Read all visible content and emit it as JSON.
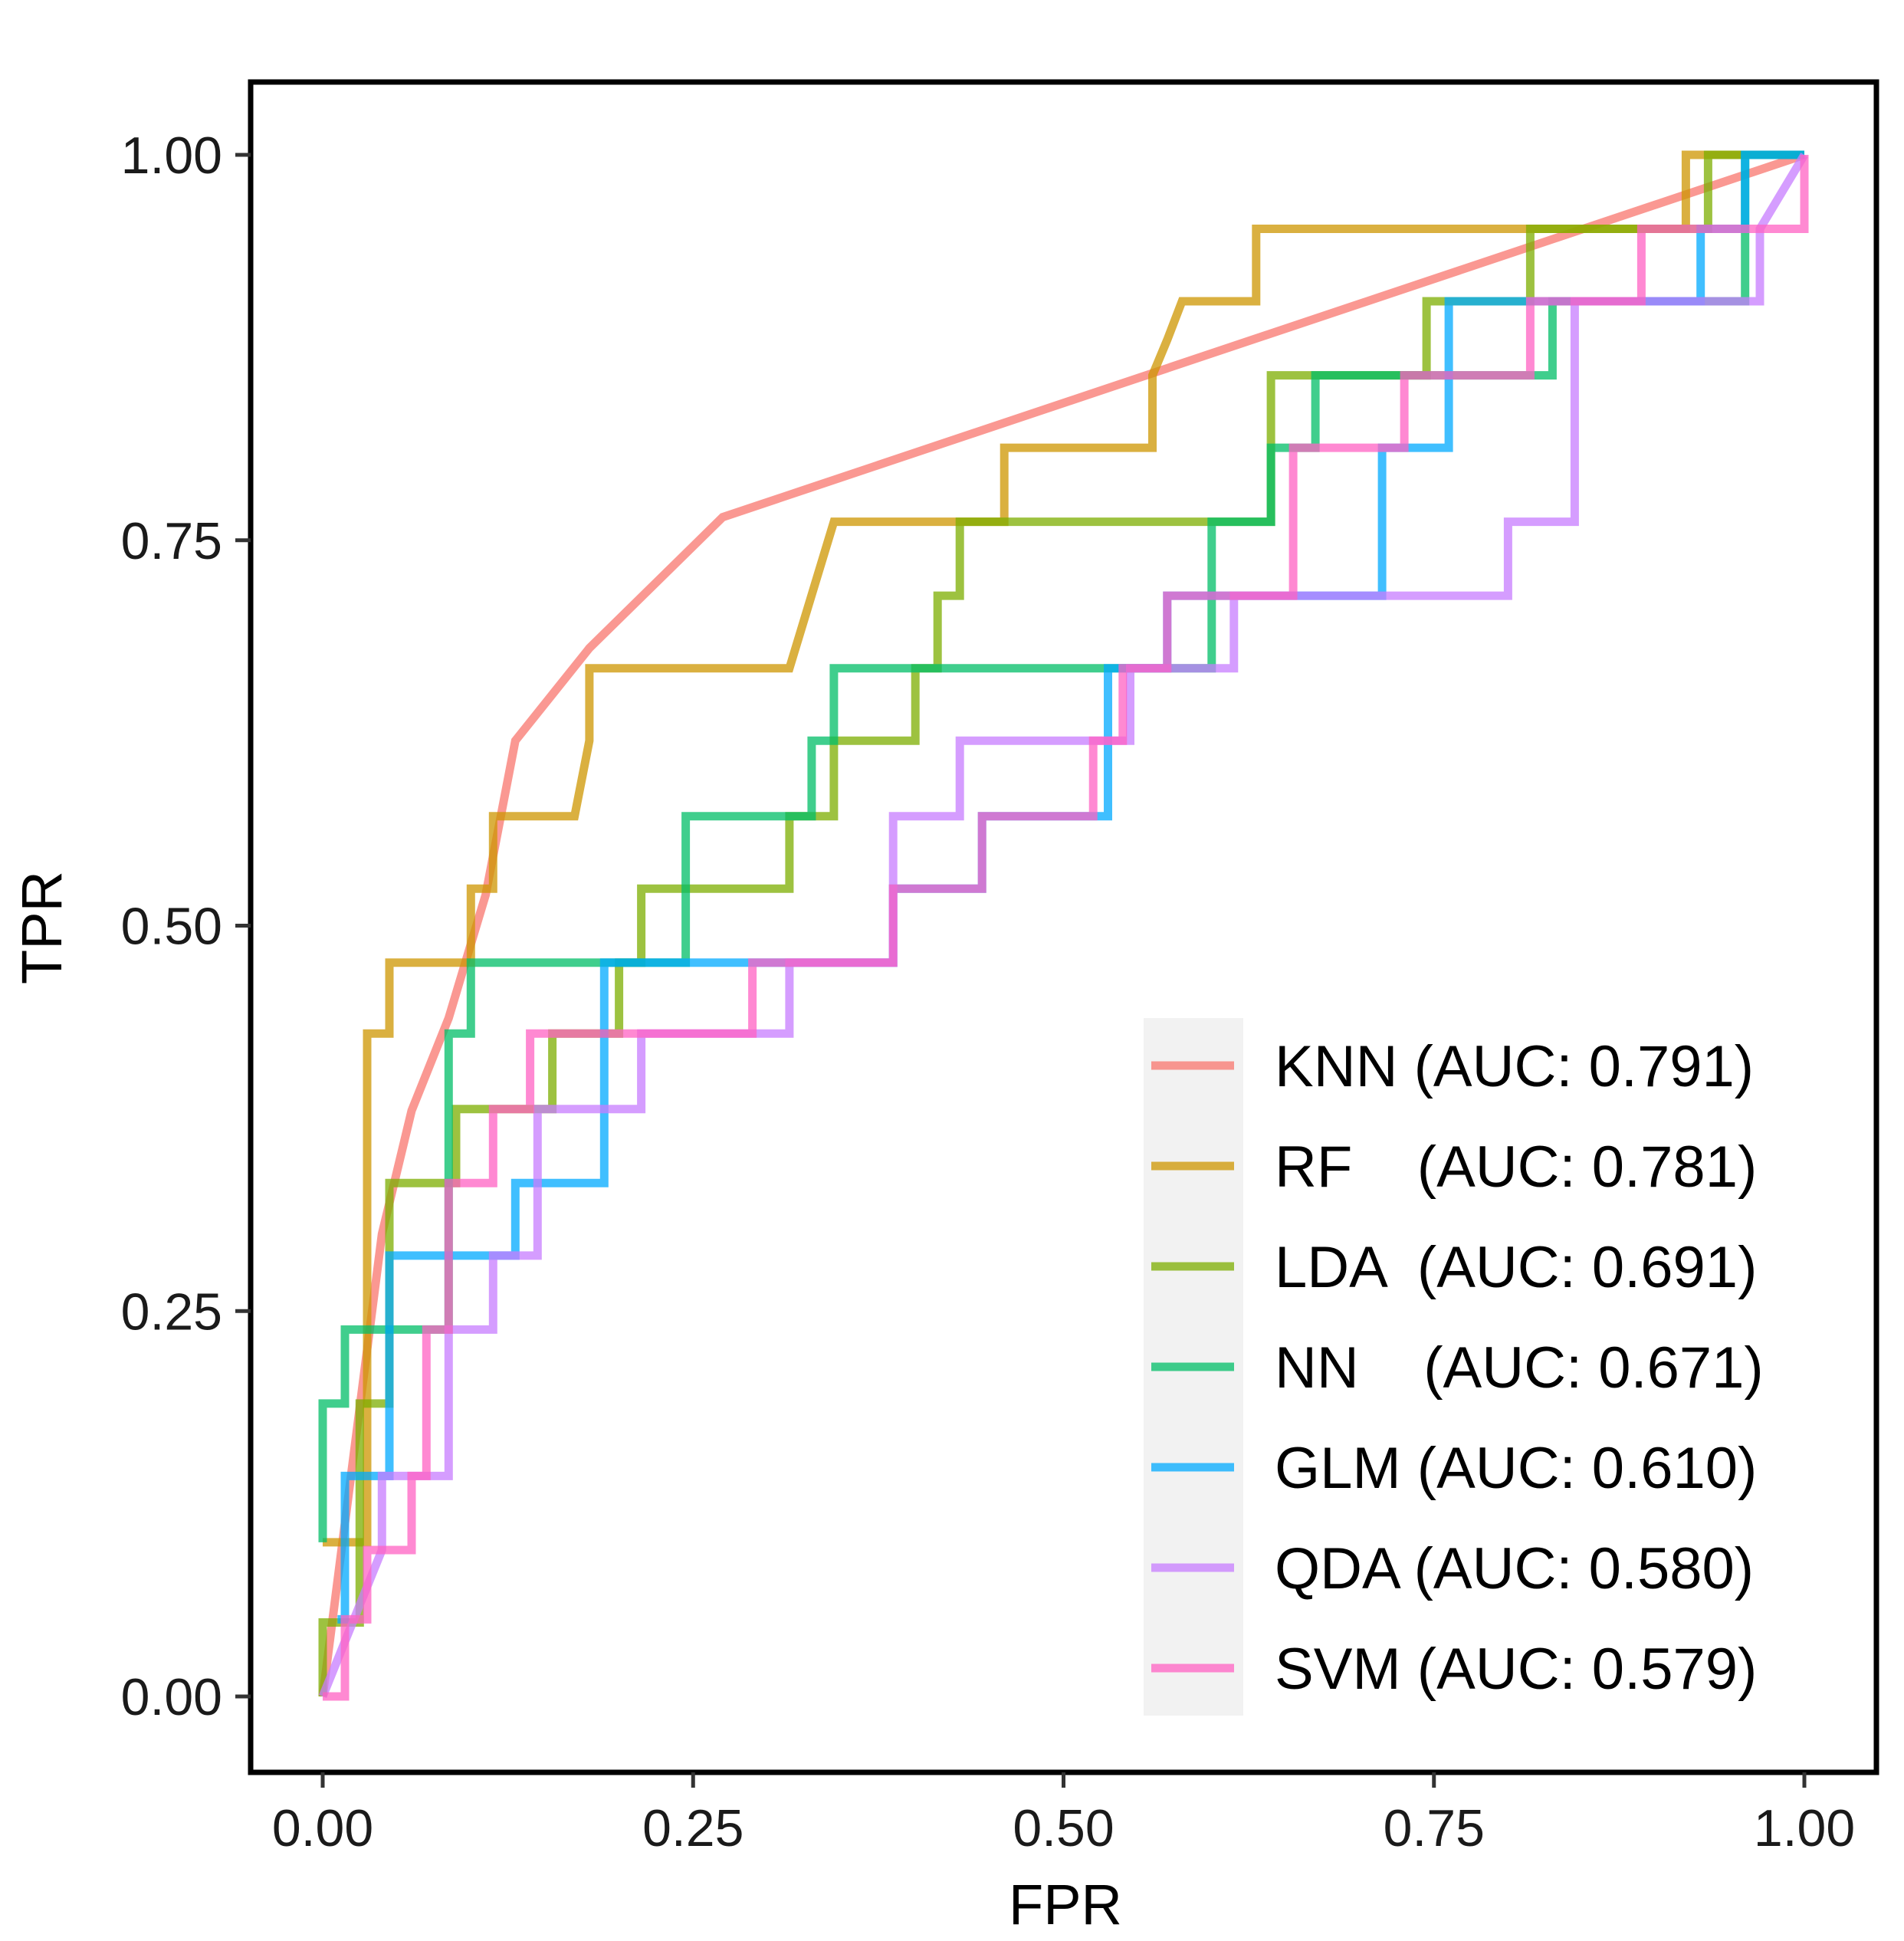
{
  "chart_data": {
    "type": "line",
    "title": "",
    "xlabel": "FPR",
    "ylabel": "TPR",
    "xlim": [
      0,
      1
    ],
    "ylim": [
      0,
      1
    ],
    "x_ticks": [
      0,
      0.25,
      0.5,
      0.75,
      1
    ],
    "y_ticks": [
      0,
      0.25,
      0.5,
      0.75,
      1
    ],
    "x_tick_labels": [
      "0.00",
      "0.25",
      "0.50",
      "0.75",
      "1.00"
    ],
    "y_tick_labels": [
      "0.00",
      "0.25",
      "0.50",
      "0.75",
      "1.00"
    ],
    "grid": false,
    "legend_position": "bottom-right",
    "series": [
      {
        "name": "KNN",
        "label": "KNN (AUC: 0.791)",
        "auc": 0.791,
        "color": "#F8766D",
        "step": false,
        "x": [
          0,
          0.02,
          0.04,
          0.06,
          0.085,
          0.11,
          0.13,
          0.18,
          0.27,
          1.0
        ],
        "y": [
          0,
          0.15,
          0.3,
          0.38,
          0.44,
          0.52,
          0.62,
          0.68,
          0.765,
          1.0
        ]
      },
      {
        "name": "RF",
        "label": "RF    (AUC: 0.781)",
        "auc": 0.781,
        "color": "#CD9600",
        "step": true,
        "x": [
          0,
          0.03,
          0.03,
          0.045,
          0.045,
          0.1,
          0.1,
          0.115,
          0.115,
          0.17,
          0.18,
          0.18,
          0.315,
          0.345,
          0.46,
          0.46,
          0.56,
          0.56,
          0.57,
          0.58,
          0.63,
          0.63,
          0.92,
          0.92,
          1.0
        ],
        "y": [
          0.1,
          0.1,
          0.43,
          0.43,
          0.476,
          0.476,
          0.524,
          0.524,
          0.571,
          0.571,
          0.62,
          0.667,
          0.667,
          0.762,
          0.762,
          0.81,
          0.81,
          0.857,
          0.88,
          0.905,
          0.905,
          0.952,
          0.952,
          1.0,
          1.0
        ]
      },
      {
        "name": "LDA",
        "label": "LDA  (AUC: 0.691)",
        "auc": 0.691,
        "color": "#7CAE00",
        "step": true,
        "x": [
          0,
          0,
          0.025,
          0.025,
          0.045,
          0.045,
          0.09,
          0.09,
          0.155,
          0.155,
          0.2,
          0.2,
          0.215,
          0.215,
          0.315,
          0.315,
          0.345,
          0.345,
          0.4,
          0.4,
          0.415,
          0.415,
          0.43,
          0.43,
          0.64,
          0.64,
          0.745,
          0.745,
          0.815,
          0.815,
          0.935,
          0.935,
          1.0
        ],
        "y": [
          0,
          0.048,
          0.048,
          0.19,
          0.19,
          0.333,
          0.333,
          0.381,
          0.381,
          0.43,
          0.43,
          0.476,
          0.476,
          0.524,
          0.524,
          0.571,
          0.571,
          0.62,
          0.62,
          0.667,
          0.667,
          0.714,
          0.714,
          0.762,
          0.762,
          0.857,
          0.857,
          0.905,
          0.905,
          0.952,
          0.952,
          1.0,
          1.0
        ]
      },
      {
        "name": "NN",
        "label": "NN    (AUC: 0.671)",
        "auc": 0.671,
        "color": "#00BE67",
        "step": true,
        "x": [
          0,
          0,
          0.015,
          0.015,
          0.085,
          0.085,
          0.1,
          0.1,
          0.245,
          0.245,
          0.33,
          0.33,
          0.345,
          0.345,
          0.6,
          0.6,
          0.64,
          0.64,
          0.67,
          0.67,
          0.83,
          0.83,
          0.96,
          0.96,
          1.0
        ],
        "y": [
          0.1,
          0.19,
          0.19,
          0.238,
          0.238,
          0.43,
          0.43,
          0.476,
          0.476,
          0.571,
          0.571,
          0.62,
          0.62,
          0.667,
          0.667,
          0.762,
          0.762,
          0.81,
          0.81,
          0.857,
          0.857,
          0.905,
          0.905,
          1.0,
          1.0
        ]
      },
      {
        "name": "GLM",
        "label": "GLM (AUC: 0.610)",
        "auc": 0.61,
        "color": "#00A9FF",
        "step": true,
        "x": [
          0.01,
          0.015,
          0.015,
          0.045,
          0.045,
          0.13,
          0.13,
          0.19,
          0.19,
          0.385,
          0.385,
          0.445,
          0.445,
          0.53,
          0.53,
          0.57,
          0.57,
          0.715,
          0.715,
          0.76,
          0.76,
          0.93,
          0.93,
          0.96,
          0.96,
          1.0
        ],
        "y": [
          0.05,
          0.05,
          0.143,
          0.143,
          0.286,
          0.286,
          0.333,
          0.333,
          0.476,
          0.476,
          0.524,
          0.524,
          0.571,
          0.571,
          0.667,
          0.667,
          0.714,
          0.714,
          0.81,
          0.81,
          0.905,
          0.905,
          0.952,
          0.952,
          1.0,
          1.0
        ]
      },
      {
        "name": "QDA",
        "label": "QDA (AUC: 0.580)",
        "auc": 0.58,
        "color": "#C77CFF",
        "step": true,
        "x": [
          0,
          0.04,
          0.04,
          0.085,
          0.085,
          0.115,
          0.115,
          0.145,
          0.145,
          0.215,
          0.215,
          0.315,
          0.315,
          0.385,
          0.385,
          0.43,
          0.43,
          0.545,
          0.545,
          0.615,
          0.615,
          0.8,
          0.8,
          0.845,
          0.845,
          0.97,
          0.97,
          1.0
        ],
        "y": [
          0,
          0.095,
          0.143,
          0.143,
          0.238,
          0.238,
          0.286,
          0.286,
          0.381,
          0.381,
          0.43,
          0.43,
          0.476,
          0.476,
          0.571,
          0.571,
          0.62,
          0.62,
          0.667,
          0.667,
          0.714,
          0.714,
          0.762,
          0.762,
          0.905,
          0.905,
          0.952,
          1.0
        ]
      },
      {
        "name": "SVM",
        "label": "SVM (AUC: 0.579)",
        "auc": 0.579,
        "color": "#FF61C3",
        "step": true,
        "x": [
          0,
          0.015,
          0.015,
          0.03,
          0.03,
          0.06,
          0.06,
          0.07,
          0.07,
          0.085,
          0.085,
          0.115,
          0.115,
          0.14,
          0.14,
          0.29,
          0.29,
          0.385,
          0.385,
          0.445,
          0.445,
          0.52,
          0.52,
          0.54,
          0.54,
          0.57,
          0.57,
          0.655,
          0.655,
          0.73,
          0.73,
          0.815,
          0.815,
          0.89,
          0.89,
          1.0,
          1.0
        ],
        "y": [
          0,
          0,
          0.05,
          0.05,
          0.095,
          0.095,
          0.143,
          0.143,
          0.238,
          0.238,
          0.333,
          0.333,
          0.381,
          0.381,
          0.43,
          0.43,
          0.476,
          0.476,
          0.524,
          0.524,
          0.571,
          0.571,
          0.62,
          0.62,
          0.667,
          0.667,
          0.714,
          0.714,
          0.81,
          0.81,
          0.857,
          0.857,
          0.905,
          0.905,
          0.952,
          0.952,
          1.0
        ]
      }
    ]
  }
}
